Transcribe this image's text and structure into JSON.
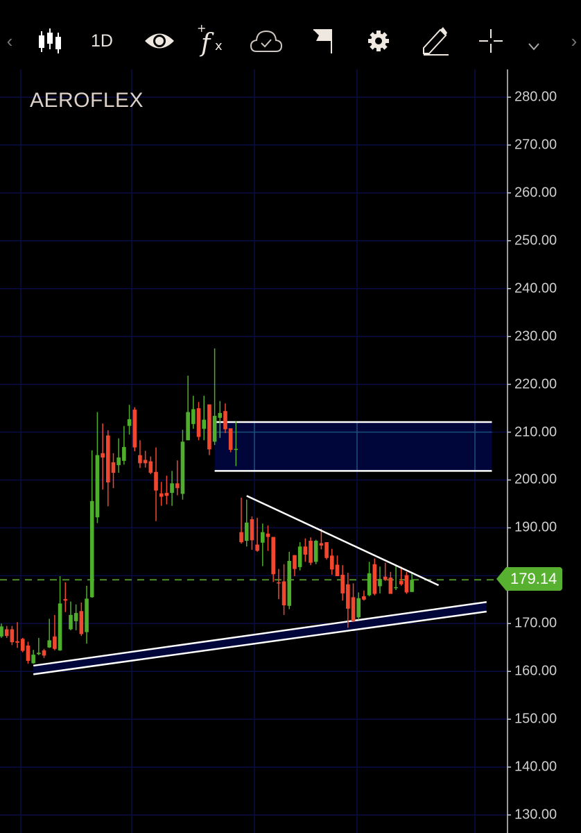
{
  "toolbar": {
    "prev_label": "‹",
    "next_label": "›",
    "interval_label": "1D",
    "icons": [
      "candlestick-icon",
      "eye-icon",
      "add-indicator-fx-icon",
      "cloud-check-icon",
      "flag-icon",
      "gear-icon",
      "pencil-icon",
      "crosshair-icon",
      "chevron-down-icon"
    ]
  },
  "colors": {
    "up": "#4fae2c",
    "down": "#f2472f",
    "grid": "#0a0d45",
    "zone_fill": "#00063a",
    "last_price": "#58b030",
    "drawing": "#ffffff"
  },
  "chart_data": {
    "type": "candlestick",
    "title": "AEROFLEX",
    "interval": "1D",
    "ylim": [
      130,
      280
    ],
    "yticks": [
      "280.00",
      "270.00",
      "260.00",
      "250.00",
      "240.00",
      "230.00",
      "220.00",
      "210.00",
      "200.00",
      "190.00",
      "180.00",
      "170.00",
      "160.00",
      "150.00",
      "140.00",
      "130.00"
    ],
    "grid": true,
    "last_price": "179.14",
    "candles": [
      [
        167.3,
        170,
        167,
        169.4
      ],
      [
        168.8,
        169.5,
        167,
        167.4
      ],
      [
        168.8,
        169.5,
        165.5,
        166.1
      ],
      [
        166.3,
        170.3,
        164.9,
        166.0
      ],
      [
        166.8,
        167,
        164,
        164.3
      ],
      [
        165.4,
        166.2,
        161.6,
        162.2
      ],
      [
        161.7,
        164.5,
        161.6,
        163.5
      ],
      [
        163.6,
        167,
        163.4,
        163.9
      ],
      [
        164.4,
        164.7,
        162.8,
        163.3
      ],
      [
        165.0,
        171,
        164.9,
        166.5
      ],
      [
        167.3,
        171.8,
        164.4,
        164.7
      ],
      [
        164.4,
        179.9,
        164.3,
        174.2
      ],
      [
        175.1,
        178.6,
        172.4,
        174.8
      ],
      [
        168.8,
        174.6,
        168.6,
        171.8
      ],
      [
        170.5,
        174,
        168.6,
        172.2
      ],
      [
        172.6,
        174.4,
        167.4,
        167.8
      ],
      [
        168.2,
        177.9,
        165.8,
        175.2
      ],
      [
        175.5,
        206.2,
        175.4,
        195.6
      ],
      [
        192.2,
        214.2,
        191,
        205.2
      ],
      [
        205.6,
        211.8,
        198,
        204.7
      ],
      [
        209.3,
        210.4,
        194.5,
        199.5
      ],
      [
        203.7,
        205.6,
        198.3,
        201.5
      ],
      [
        203.1,
        208.7,
        201.5,
        204.7
      ],
      [
        204.0,
        211.3,
        203.2,
        206.9
      ],
      [
        211.3,
        215.7,
        209.5,
        212.7
      ],
      [
        214.7,
        215.2,
        206,
        206.8
      ],
      [
        205.2,
        208.3,
        202.5,
        203.5
      ],
      [
        204.2,
        206.1,
        202.6,
        203.5
      ],
      [
        203.9,
        204.9,
        201.2,
        201.5
      ],
      [
        201.7,
        206.8,
        191.4,
        197.8
      ],
      [
        197.2,
        199.6,
        194.6,
        196.5
      ],
      [
        197.3,
        200.9,
        194.9,
        196.7
      ],
      [
        197.3,
        201.9,
        194.6,
        199.3
      ],
      [
        199.3,
        204.1,
        196.8,
        198.3
      ],
      [
        197.1,
        210.5,
        195.9,
        208
      ],
      [
        208.3,
        221.8,
        208.3,
        214.2
      ],
      [
        211.7,
        217.6,
        210.7,
        214.8
      ],
      [
        215,
        216.3,
        208.3,
        209
      ],
      [
        210.7,
        217.6,
        208.3,
        212.6
      ],
      [
        215.8,
        215.8,
        205.2,
        206.4
      ],
      [
        208,
        227.5,
        207.3,
        213.4
      ],
      [
        213,
        216.5,
        208.8,
        214
      ],
      [
        214.4,
        216,
        209.8,
        210.6
      ],
      [
        210.8,
        210.8,
        205.8,
        206.3
      ],
      [
        206.4,
        212.3,
        202.9,
        206.5
      ],
      [
        189.1,
        196.3,
        186.7,
        187.0
      ],
      [
        187.3,
        195.9,
        186.1,
        191.1
      ],
      [
        191.8,
        192.4,
        185.4,
        187.4
      ],
      [
        186.5,
        192.1,
        185,
        185.2
      ],
      [
        186.9,
        190.9,
        182,
        189.1
      ],
      [
        188.8,
        190.5,
        185.2,
        188.1
      ],
      [
        188.1,
        188.1,
        178.7,
        180.3
      ],
      [
        178.6,
        181.4,
        175.1,
        178.4
      ],
      [
        178.8,
        182.4,
        171.8,
        173.8
      ],
      [
        173.7,
        185,
        173,
        183.1
      ],
      [
        184.3,
        184.3,
        179.9,
        181.4
      ],
      [
        181.8,
        187.0,
        181.1,
        186.1
      ],
      [
        186.1,
        187.8,
        182.9,
        184.4
      ],
      [
        187.3,
        188,
        182.2,
        182.7
      ],
      [
        182.9,
        187.5,
        182.4,
        187.3
      ],
      [
        186.8,
        189.8,
        185.5,
        186.3
      ],
      [
        187,
        187,
        183.4,
        183.7
      ],
      [
        184.2,
        185.6,
        180.2,
        181.3
      ],
      [
        182.3,
        184.2,
        179.9,
        179.9
      ],
      [
        180.2,
        182.2,
        174.8,
        176.3
      ],
      [
        178.2,
        180.6,
        169.1,
        173.1
      ],
      [
        175.5,
        178.4,
        170.3,
        170.5
      ],
      [
        171.3,
        176.5,
        170.8,
        175.3
      ],
      [
        175.7,
        176.9,
        174.8,
        175.0
      ],
      [
        175.9,
        182.9,
        175.7,
        180.5
      ],
      [
        182.4,
        183.6,
        175.9,
        176.2
      ],
      [
        177.8,
        181.9,
        176.3,
        179.3
      ],
      [
        179.8,
        182.7,
        178.9,
        179.1
      ],
      [
        179.6,
        180.8,
        176.2,
        176.2
      ],
      [
        177.4,
        182.2,
        177.0,
        177.6
      ],
      [
        178.9,
        181.9,
        177.9,
        178.2
      ],
      [
        180.1,
        180.8,
        176.2,
        176.5
      ],
      [
        176.6,
        180.8,
        176.6,
        179.14
      ]
    ],
    "drawings": {
      "rectangle": {
        "from_bar": 40,
        "to_bar": 92,
        "top": 212.1,
        "bottom": 201.9
      },
      "descending_trendline": {
        "from": [
          46,
          196.7
        ],
        "to": [
          82,
          178.0
        ]
      },
      "ascending_channel": {
        "upper": {
          "from": [
            6,
            161.2
          ],
          "to": [
            91,
            174.5
          ]
        },
        "lower": {
          "from": [
            6,
            159.4
          ],
          "to": [
            91,
            172.5
          ]
        }
      }
    }
  }
}
